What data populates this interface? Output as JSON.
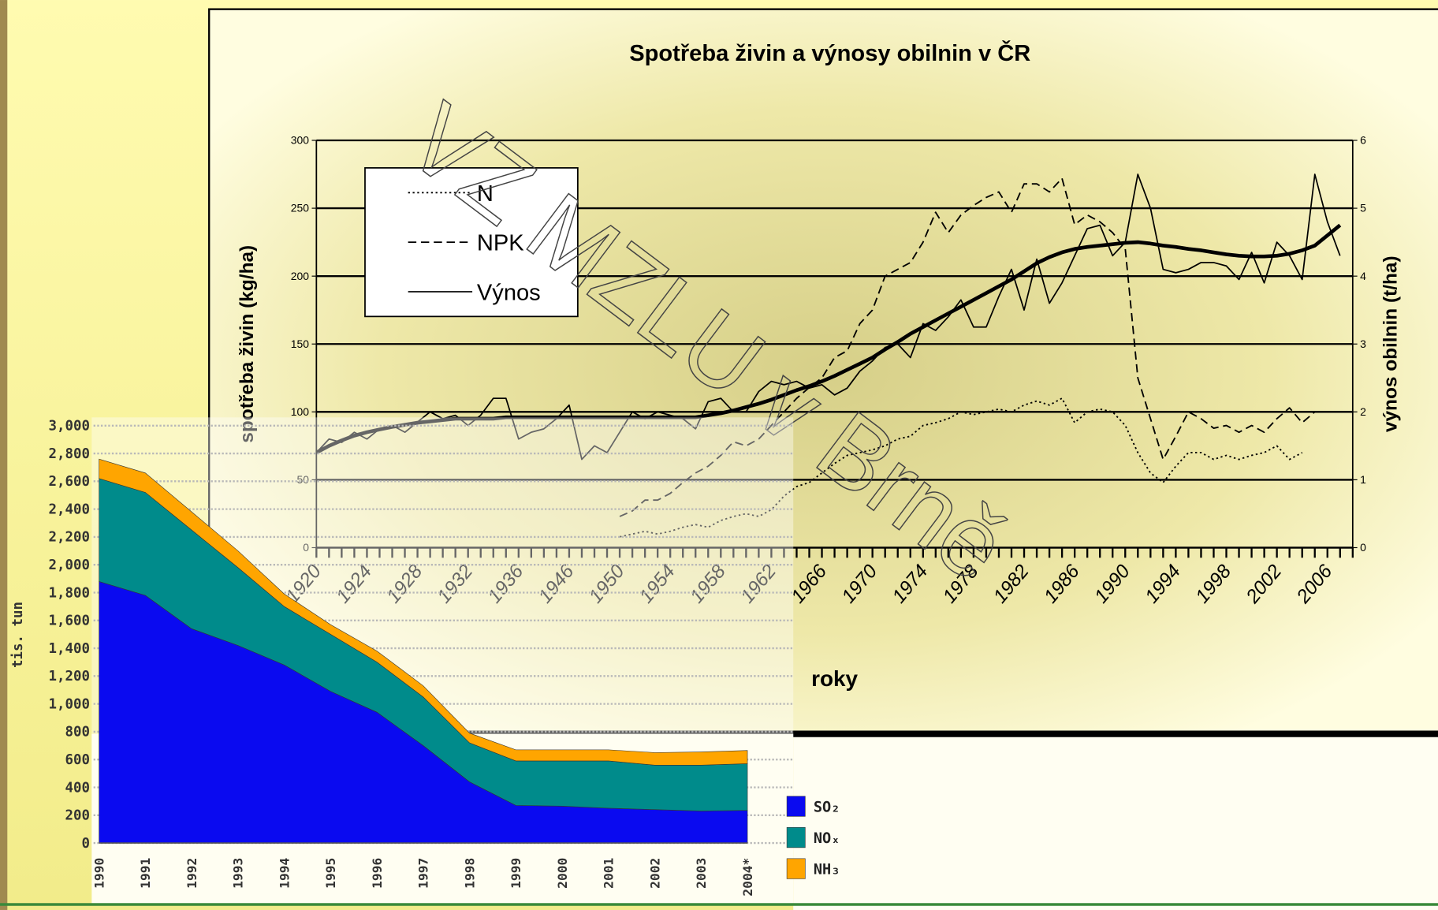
{
  "chart_data": [
    {
      "type": "line",
      "title": "Spotřeba živin a výnosy obilnin v ČR",
      "xlabel": "roky",
      "ylabel": "spotřeba živin (kg/ha)",
      "y2label": "výnos obilnin (t/ha)",
      "annotation": "VZ MZLU v Brně",
      "legend": "top-left",
      "grid": true,
      "ylim": [
        0,
        300
      ],
      "yticks": [
        0,
        50,
        100,
        150,
        200,
        250,
        300
      ],
      "y2lim": [
        0,
        6
      ],
      "y2ticks": [
        0,
        1,
        2,
        3,
        4,
        5,
        6
      ],
      "categories": [
        "1920",
        null,
        null,
        null,
        "1924",
        null,
        null,
        null,
        "1928",
        null,
        null,
        null,
        "1932",
        null,
        null,
        null,
        "1936",
        null,
        null,
        null,
        "1946",
        null,
        null,
        null,
        "1950",
        null,
        null,
        null,
        "1954",
        null,
        null,
        null,
        "1958",
        null,
        null,
        null,
        "1962",
        null,
        null,
        null,
        "1966",
        null,
        null,
        null,
        "1970",
        null,
        null,
        null,
        "1974",
        null,
        null,
        null,
        "1978",
        null,
        null,
        null,
        "1982",
        null,
        null,
        null,
        "1986",
        null,
        null,
        null,
        "1990",
        null,
        null,
        null,
        "1994",
        null,
        null,
        null,
        "1998",
        null,
        null,
        null,
        "2002",
        null,
        null,
        null,
        "2006",
        null,
        null
      ],
      "series": [
        {
          "name": "N",
          "color": "#000000",
          "line_style": "dotted",
          "values": [
            null,
            null,
            null,
            null,
            null,
            null,
            null,
            null,
            null,
            null,
            null,
            null,
            null,
            null,
            null,
            null,
            null,
            null,
            null,
            null,
            null,
            null,
            null,
            null,
            8,
            10,
            12,
            10,
            12,
            15,
            17,
            15,
            20,
            23,
            25,
            23,
            28,
            38,
            45,
            48,
            55,
            62,
            68,
            70,
            72,
            75,
            80,
            82,
            90,
            92,
            95,
            100,
            98,
            100,
            102,
            100,
            105,
            108,
            105,
            110,
            92,
            100,
            102,
            100,
            90,
            70,
            55,
            48,
            60,
            70,
            70,
            65,
            68,
            65,
            68,
            70,
            75,
            65,
            70,
            null,
            null,
            null,
            null
          ]
        },
        {
          "name": "NPK",
          "color": "#000000",
          "line_style": "dashed",
          "values": [
            null,
            null,
            null,
            null,
            null,
            null,
            null,
            null,
            null,
            null,
            null,
            null,
            null,
            null,
            null,
            null,
            null,
            null,
            null,
            null,
            null,
            null,
            null,
            null,
            23,
            27,
            35,
            35,
            40,
            48,
            55,
            60,
            68,
            78,
            75,
            80,
            90,
            100,
            110,
            118,
            125,
            140,
            145,
            165,
            175,
            200,
            205,
            210,
            225,
            247,
            232,
            245,
            252,
            258,
            262,
            247,
            268,
            268,
            262,
            272,
            238,
            245,
            240,
            232,
            220,
            125,
            95,
            65,
            82,
            100,
            95,
            88,
            90,
            85,
            90,
            85,
            95,
            103,
            92,
            100,
            null,
            null,
            null
          ]
        },
        {
          "name": "Výnos",
          "color": "#000000",
          "line_style": "solid",
          "axis": "y2",
          "values": [
            1.4,
            1.6,
            1.55,
            1.7,
            1.6,
            1.75,
            1.8,
            1.7,
            1.85,
            2.0,
            1.9,
            1.95,
            1.8,
            1.95,
            2.2,
            2.2,
            1.6,
            1.7,
            1.75,
            1.9,
            2.1,
            1.3,
            1.5,
            1.4,
            1.7,
            2.0,
            1.9,
            2.0,
            1.95,
            1.9,
            1.75,
            2.15,
            2.2,
            2.0,
            2.0,
            2.3,
            2.45,
            2.4,
            2.45,
            2.35,
            2.4,
            2.25,
            2.35,
            2.6,
            2.75,
            2.95,
            3.0,
            2.8,
            3.3,
            3.2,
            3.4,
            3.65,
            3.25,
            3.25,
            3.7,
            4.1,
            3.5,
            4.25,
            3.6,
            3.9,
            4.3,
            4.7,
            4.75,
            4.3,
            4.5,
            5.5,
            5.0,
            4.1,
            4.05,
            4.1,
            4.2,
            4.2,
            4.15,
            3.95,
            4.35,
            3.9,
            4.5,
            4.3,
            3.95,
            5.5,
            4.8,
            4.3,
            null
          ]
        },
        {
          "color": "#000000",
          "line_style": "thick",
          "axis": "y2",
          "values": [
            1.4,
            1.5,
            1.58,
            1.65,
            1.7,
            1.74,
            1.78,
            1.81,
            1.84,
            1.86,
            1.88,
            1.9,
            1.9,
            1.9,
            1.9,
            1.92,
            1.92,
            1.92,
            1.92,
            1.92,
            1.92,
            1.92,
            1.92,
            1.92,
            1.92,
            1.92,
            1.92,
            1.92,
            1.92,
            1.92,
            1.92,
            1.95,
            1.98,
            2.02,
            2.07,
            2.12,
            2.18,
            2.25,
            2.32,
            2.38,
            2.45,
            2.53,
            2.62,
            2.71,
            2.8,
            2.92,
            3.03,
            3.15,
            3.25,
            3.35,
            3.45,
            3.55,
            3.65,
            3.75,
            3.85,
            3.95,
            4.07,
            4.19,
            4.28,
            4.35,
            4.4,
            4.43,
            4.45,
            4.47,
            4.49,
            4.5,
            4.48,
            4.45,
            4.43,
            4.4,
            4.38,
            4.35,
            4.32,
            4.3,
            4.29,
            4.29,
            4.3,
            4.33,
            4.38,
            4.45,
            4.6,
            4.75,
            null
          ]
        }
      ]
    },
    {
      "type": "area",
      "ylabel": "tis. tun",
      "stacked": true,
      "legend": "right",
      "grid": true,
      "ylim": [
        0,
        3000
      ],
      "yticks": [
        0,
        200,
        400,
        600,
        800,
        {
          "value": 1000,
          "label": "1,000"
        },
        {
          "value": 1200,
          "label": "1,200"
        },
        {
          "value": 1400,
          "label": "1,400"
        },
        {
          "value": 1600,
          "label": "1,600"
        },
        {
          "value": 1800,
          "label": "1,800"
        },
        {
          "value": 2000,
          "label": "2,000"
        },
        {
          "value": 2200,
          "label": "2,200"
        },
        {
          "value": 2400,
          "label": "2,400"
        },
        {
          "value": 2600,
          "label": "2,600"
        },
        {
          "value": 2800,
          "label": "2,800"
        },
        {
          "value": 3000,
          "label": "3,000"
        }
      ],
      "categories": [
        "1990",
        "1991",
        "1992",
        "1993",
        "1994",
        "1995",
        "1996",
        "1997",
        "1998",
        "1999",
        "2000",
        "2001",
        "2002",
        "2003",
        "2004*"
      ],
      "series": [
        {
          "name": "SO₂",
          "color": "#0a0af0",
          "values": [
            1880,
            1780,
            1540,
            1420,
            1280,
            1090,
            940,
            700,
            440,
            270,
            265,
            250,
            240,
            230,
            235
          ]
        },
        {
          "name": "NOₓ",
          "color": "#008b8b",
          "values": [
            740,
            740,
            710,
            560,
            420,
            410,
            360,
            350,
            280,
            320,
            325,
            340,
            320,
            330,
            335
          ]
        },
        {
          "name": "NH₃",
          "color": "#ffa500",
          "values": [
            140,
            140,
            130,
            120,
            90,
            70,
            80,
            80,
            70,
            80,
            80,
            80,
            90,
            95,
            95
          ]
        }
      ]
    }
  ]
}
